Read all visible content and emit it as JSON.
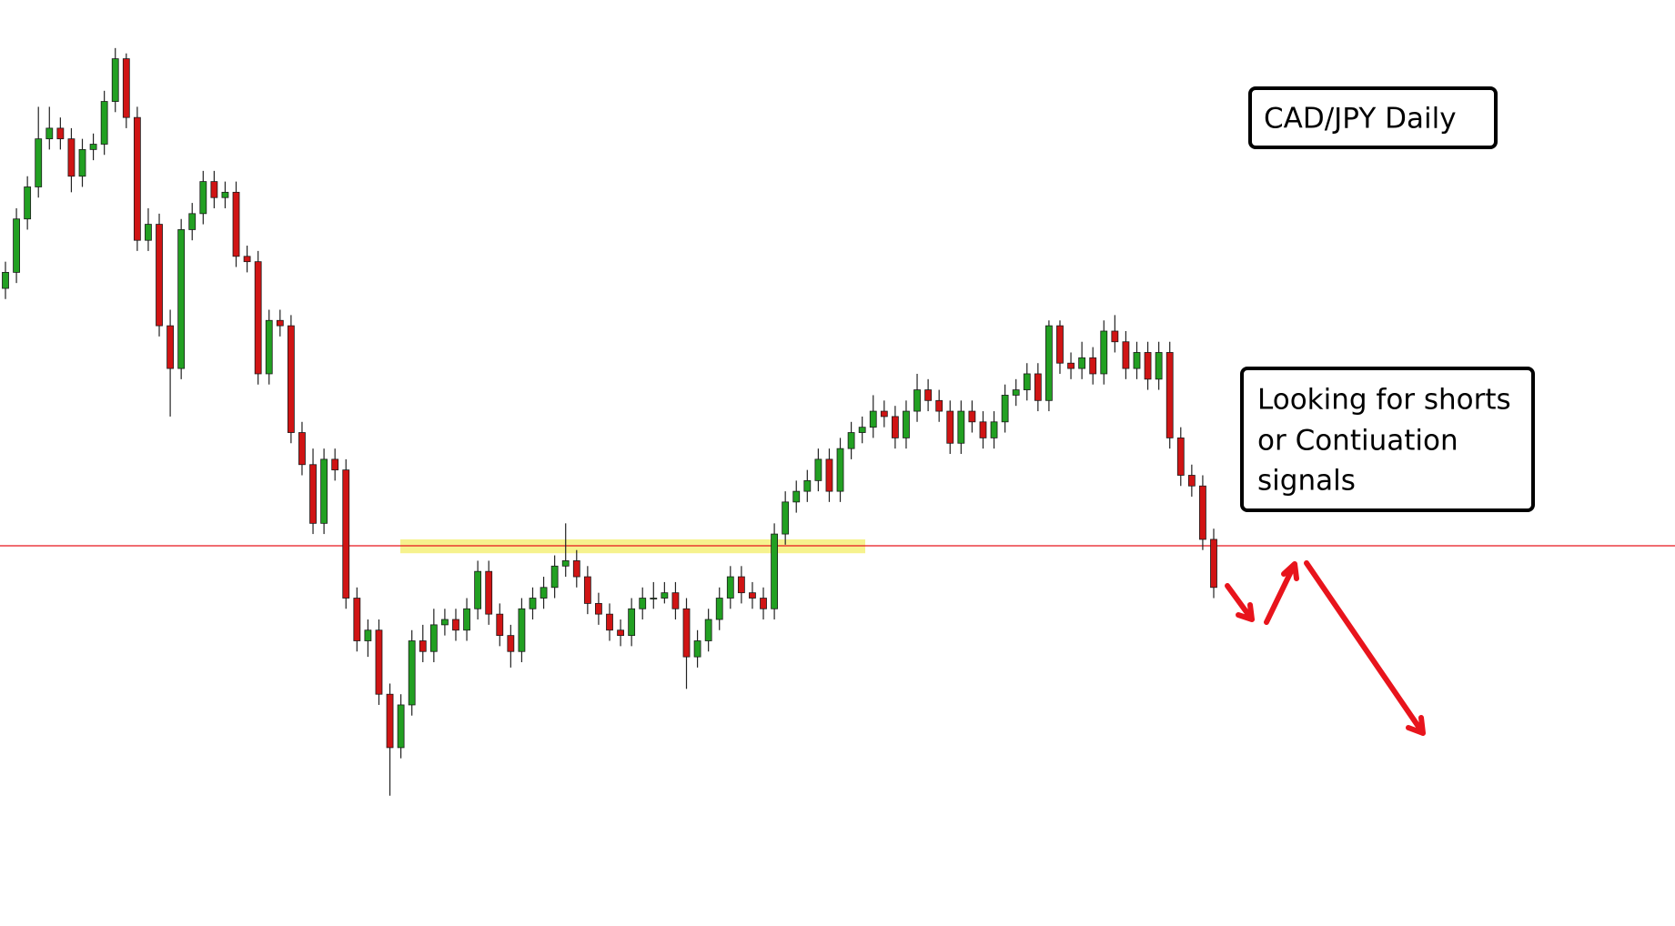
{
  "chart_data": {
    "type": "candlestick",
    "ylim": [
      13.3,
      100
    ],
    "up_color": "#22a022",
    "down_color": "#d01414",
    "wick_color": "#222222",
    "hline": {
      "value": 48.9,
      "color": "#e8141c"
    },
    "zone": {
      "values": [
        49.5,
        48.2
      ],
      "color": "#f5f07a"
    },
    "annotations": [
      {
        "lines": [
          "CAD/JPY Daily"
        ]
      },
      {
        "lines": [
          "Looking for shorts",
          "or Contiuation",
          "signals"
        ]
      }
    ],
    "ohlc": [
      [
        73,
        75.5,
        72,
        74.5
      ],
      [
        74.5,
        80.5,
        73.5,
        79.5
      ],
      [
        79.5,
        83.5,
        78.5,
        82.5
      ],
      [
        82.5,
        90,
        81.5,
        87
      ],
      [
        87,
        90,
        86,
        88
      ],
      [
        88,
        89,
        86,
        87
      ],
      [
        87,
        88,
        82,
        83.5
      ],
      [
        83.5,
        87,
        82.5,
        86
      ],
      [
        86,
        87.5,
        85,
        86.5
      ],
      [
        86.5,
        91.5,
        85.5,
        90.5
      ],
      [
        90.5,
        95.5,
        89.5,
        94.5
      ],
      [
        94.5,
        95,
        88,
        89
      ],
      [
        89,
        90,
        76.5,
        77.5
      ],
      [
        77.5,
        80.5,
        76.5,
        79
      ],
      [
        79,
        80,
        68.5,
        69.5
      ],
      [
        69.5,
        71,
        61,
        65.5
      ],
      [
        65.5,
        79.5,
        64.5,
        78.5
      ],
      [
        78.5,
        81,
        77.5,
        80
      ],
      [
        80,
        84,
        79,
        83
      ],
      [
        83,
        84,
        80.5,
        81.5
      ],
      [
        81.5,
        83,
        80.5,
        82
      ],
      [
        82,
        83,
        75,
        76
      ],
      [
        76,
        77,
        74.5,
        75.5
      ],
      [
        75.5,
        76.5,
        64,
        65
      ],
      [
        65,
        71,
        64,
        70
      ],
      [
        70,
        71,
        68.5,
        69.5
      ],
      [
        69.5,
        70.5,
        58.5,
        59.5
      ],
      [
        59.5,
        60.5,
        55.5,
        56.5
      ],
      [
        56.5,
        58,
        50,
        51
      ],
      [
        51,
        58,
        50,
        57
      ],
      [
        57,
        58,
        55,
        56
      ],
      [
        56,
        57,
        43,
        44
      ],
      [
        44,
        45,
        39,
        40
      ],
      [
        40,
        42,
        38.5,
        41
      ],
      [
        41,
        42,
        34,
        35
      ],
      [
        35,
        36,
        25.5,
        30
      ],
      [
        30,
        35,
        29,
        34
      ],
      [
        34,
        41,
        33,
        40
      ],
      [
        40,
        41.5,
        38,
        39
      ],
      [
        39,
        43,
        38,
        41.5
      ],
      [
        41.5,
        43,
        40.5,
        42
      ],
      [
        42,
        43,
        40,
        41
      ],
      [
        41,
        44,
        40,
        43
      ],
      [
        43,
        47.5,
        42,
        46.5
      ],
      [
        46.5,
        47.5,
        41.5,
        42.5
      ],
      [
        42.5,
        43.5,
        39.5,
        40.5
      ],
      [
        40.5,
        41.5,
        37.5,
        39
      ],
      [
        39,
        44,
        38,
        43
      ],
      [
        43,
        45,
        42,
        44
      ],
      [
        44,
        46,
        43,
        45
      ],
      [
        45,
        48,
        44,
        47
      ],
      [
        47,
        51,
        46,
        47.5
      ],
      [
        47.5,
        48.5,
        45,
        46
      ],
      [
        46,
        47,
        42.5,
        43.5
      ],
      [
        43.5,
        44.5,
        41.5,
        42.5
      ],
      [
        42.5,
        43.5,
        40,
        41
      ],
      [
        41,
        42,
        39.5,
        40.5
      ],
      [
        40.5,
        44,
        39.5,
        43
      ],
      [
        43,
        45,
        42,
        44
      ],
      [
        44,
        45.5,
        43,
        44
      ],
      [
        44,
        45.5,
        43.5,
        44.5
      ],
      [
        44.5,
        45.5,
        42,
        43
      ],
      [
        43,
        44,
        35.5,
        38.5
      ],
      [
        38.5,
        41,
        37.5,
        40
      ],
      [
        40,
        43,
        39,
        42
      ],
      [
        42,
        45,
        41,
        44
      ],
      [
        44,
        47,
        43,
        46
      ],
      [
        46,
        47,
        43.5,
        44.5
      ],
      [
        44.5,
        45.5,
        43,
        44
      ],
      [
        44,
        45,
        42,
        43
      ],
      [
        43,
        51,
        42,
        50
      ],
      [
        50,
        54,
        49,
        53
      ],
      [
        53,
        55,
        52,
        54
      ],
      [
        54,
        56,
        53,
        55
      ],
      [
        55,
        58,
        54,
        57
      ],
      [
        57,
        58,
        53,
        54
      ],
      [
        54,
        59,
        53,
        58
      ],
      [
        58,
        60.5,
        57,
        59.5
      ],
      [
        59.5,
        61,
        58.5,
        60
      ],
      [
        60,
        63,
        59,
        61.5
      ],
      [
        61.5,
        62.5,
        60,
        61
      ],
      [
        61,
        62,
        58,
        59
      ],
      [
        59,
        62.5,
        58,
        61.5
      ],
      [
        61.5,
        65,
        60.5,
        63.5
      ],
      [
        63.5,
        64.5,
        61.5,
        62.5
      ],
      [
        62.5,
        63.5,
        60.5,
        61.5
      ],
      [
        61.5,
        62.5,
        57.5,
        58.5
      ],
      [
        58.5,
        62.5,
        57.5,
        61.5
      ],
      [
        61.5,
        62.5,
        59.5,
        60.5
      ],
      [
        60.5,
        61.5,
        58,
        59
      ],
      [
        59,
        61.5,
        58,
        60.5
      ],
      [
        60.5,
        64,
        59.5,
        63
      ],
      [
        63,
        64.5,
        62,
        63.5
      ],
      [
        63.5,
        66,
        62.5,
        65
      ],
      [
        65,
        66,
        61.5,
        62.5
      ],
      [
        62.5,
        70,
        61.5,
        69.5
      ],
      [
        69.5,
        70,
        65,
        66
      ],
      [
        66,
        67,
        64.5,
        65.5
      ],
      [
        65.5,
        68,
        64.5,
        66.5
      ],
      [
        66.5,
        67.5,
        64,
        65
      ],
      [
        65,
        70,
        64,
        69
      ],
      [
        69,
        70.5,
        67,
        68
      ],
      [
        68,
        69,
        64.5,
        65.5
      ],
      [
        65.5,
        68,
        64.5,
        67
      ],
      [
        67,
        68,
        63.5,
        64.5
      ],
      [
        64.5,
        68,
        63.5,
        67
      ],
      [
        67,
        68,
        58,
        59
      ],
      [
        59,
        60,
        54.5,
        55.5
      ],
      [
        55.5,
        56.5,
        53.5,
        54.5
      ],
      [
        54.5,
        55.5,
        48.5,
        49.5
      ],
      [
        49.5,
        50.5,
        44,
        45
      ]
    ]
  }
}
